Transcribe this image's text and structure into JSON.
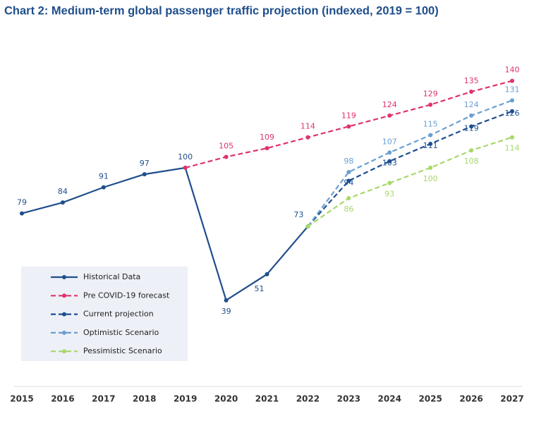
{
  "chart_data": {
    "type": "line",
    "title": "Chart 2: Medium-term global passenger traffic projection (indexed, 2019 = 100)",
    "categories": [
      "2015",
      "2016",
      "2017",
      "2018",
      "2019",
      "2020",
      "2021",
      "2022",
      "2023",
      "2024",
      "2025",
      "2026",
      "2027"
    ],
    "ylim": [
      0,
      160
    ],
    "series": [
      {
        "name": "Historical Data",
        "color": "#1f4e8c",
        "dashed": false,
        "values": [
          79,
          84,
          91,
          97,
          100,
          39,
          51,
          73,
          null,
          null,
          null,
          null,
          null
        ]
      },
      {
        "name": "Pre COVID-19 forecast",
        "color": "#e0336b",
        "dashed": true,
        "values": [
          null,
          null,
          null,
          null,
          100,
          105,
          109,
          114,
          119,
          124,
          129,
          135,
          140
        ]
      },
      {
        "name": "Current projection",
        "color": "#1d4f91",
        "dashed": true,
        "values": [
          null,
          null,
          null,
          null,
          null,
          null,
          null,
          73,
          94,
          103,
          111,
          119,
          126
        ]
      },
      {
        "name": "Optimistic Scenario",
        "color": "#6a9fd0",
        "dashed": true,
        "values": [
          null,
          null,
          null,
          null,
          null,
          null,
          null,
          73,
          98,
          107,
          115,
          124,
          131
        ]
      },
      {
        "name": "Pessimistic Scenario",
        "color": "#a8d86a",
        "dashed": true,
        "values": [
          null,
          null,
          null,
          null,
          null,
          null,
          null,
          73,
          86,
          93,
          100,
          108,
          114
        ]
      }
    ]
  }
}
